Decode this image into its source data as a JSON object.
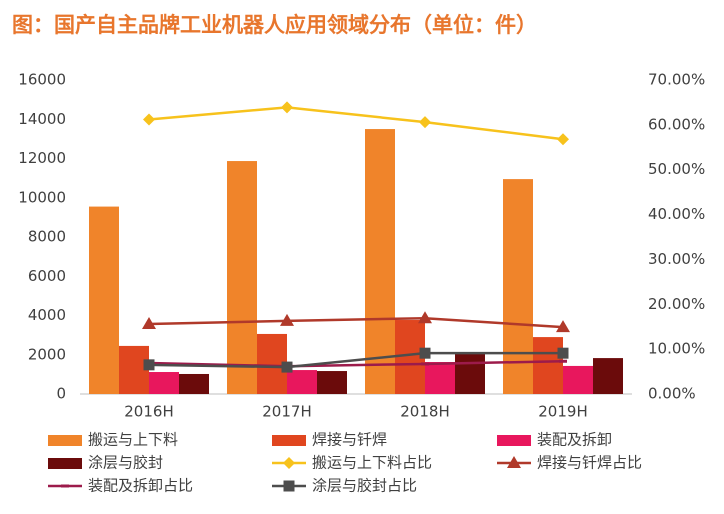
{
  "chart_data": {
    "type": "bar-line",
    "title": "图：国产自主品牌工业机器人应用领域分布（单位：件）",
    "categories": [
      "2016H",
      "2017H",
      "2018H",
      "2019H"
    ],
    "ylim": [
      0,
      16000
    ],
    "yticks": [
      0,
      2000,
      4000,
      6000,
      8000,
      10000,
      12000,
      14000,
      16000
    ],
    "y2lim": [
      0,
      70
    ],
    "y2ticks": [
      {
        "value": 0,
        "label": "0.00%"
      },
      {
        "value": 10,
        "label": "10.00%"
      },
      {
        "value": 20,
        "label": "20.00%"
      },
      {
        "value": 30,
        "label": "30.00%"
      },
      {
        "value": 40,
        "label": "40.00%"
      },
      {
        "value": 50,
        "label": "50.00%"
      },
      {
        "value": 60,
        "label": "60.00%"
      },
      {
        "value": 70,
        "label": "70.00%"
      }
    ],
    "grid": false,
    "legend": "bottom",
    "series": [
      {
        "name": "搬运与上下料",
        "type": "bar",
        "color": "#f0842a",
        "values": [
          9550,
          11870,
          13500,
          10950
        ]
      },
      {
        "name": "焊接与钎焊",
        "type": "bar",
        "color": "#e0461f",
        "values": [
          2450,
          3060,
          3770,
          2900
        ]
      },
      {
        "name": "装配及拆卸",
        "type": "bar",
        "color": "#e8175d",
        "values": [
          1120,
          1220,
          1630,
          1430
        ]
      },
      {
        "name": "涂层与胶封",
        "type": "bar",
        "color": "#6b0b0b",
        "values": [
          1020,
          1170,
          2140,
          1830
        ]
      },
      {
        "name": "搬运与上下料占比",
        "type": "line",
        "axis": "y2",
        "color": "#f7c21c",
        "marker": "diamond",
        "values": [
          61.2,
          63.9,
          60.6,
          56.8
        ]
      },
      {
        "name": "焊接与钎焊占比",
        "type": "line",
        "axis": "y2",
        "color": "#b0392a",
        "marker": "triangle",
        "values": [
          15.6,
          16.3,
          16.9,
          14.9
        ]
      },
      {
        "name": "装配及拆卸占比",
        "type": "line",
        "axis": "y2",
        "color": "#9c1b4b",
        "marker": "dash",
        "values": [
          6.9,
          6.2,
          6.7,
          7.3
        ]
      },
      {
        "name": "涂层与胶封占比",
        "type": "line",
        "axis": "y2",
        "color": "#4d4d4d",
        "marker": "square",
        "values": [
          6.5,
          6.0,
          9.1,
          9.1
        ]
      }
    ]
  }
}
